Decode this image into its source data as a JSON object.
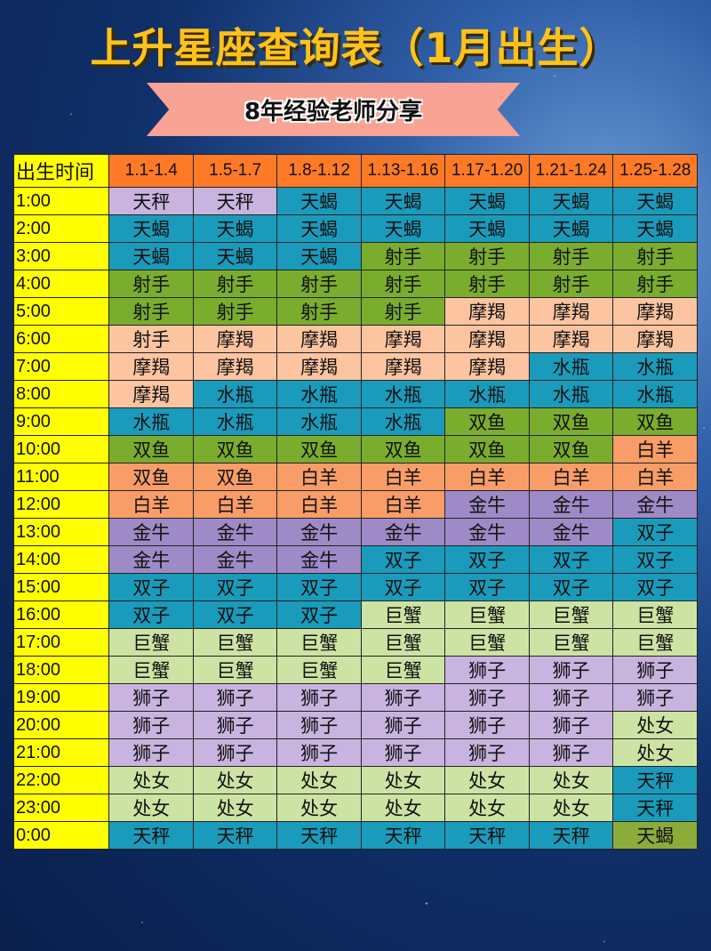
{
  "title": "上升星座查询表（1月出生）",
  "subtitle": "8年经验老师分享",
  "colors": {
    "header": "#ff7a26",
    "time_column": "#ffff00",
    "T": "#1a9bbb",
    "G": "#7aad2e",
    "P": "#fcc4a0",
    "O": "#f99d68",
    "V": "#9d8ac6",
    "L": "#c9b3df",
    "Y": "#cde3a4",
    "A": "#8cac3a"
  },
  "table": {
    "corner": "出生时间",
    "columns": [
      "1.1-1.4",
      "1.5-1.7",
      "1.8-1.12",
      "1.13-1.16",
      "1.17-1.20",
      "1.21-1.24",
      "1.25-1.28"
    ],
    "rows": [
      {
        "time": "1:00",
        "signs": [
          "天秤",
          "天秤",
          "天蝎",
          "天蝎",
          "天蝎",
          "天蝎",
          "天蝎"
        ],
        "colors": [
          "L",
          "L",
          "T",
          "T",
          "T",
          "T",
          "T"
        ]
      },
      {
        "time": "2:00",
        "signs": [
          "天蝎",
          "天蝎",
          "天蝎",
          "天蝎",
          "天蝎",
          "天蝎",
          "天蝎"
        ],
        "colors": [
          "T",
          "T",
          "T",
          "T",
          "T",
          "T",
          "T"
        ]
      },
      {
        "time": "3:00",
        "signs": [
          "天蝎",
          "天蝎",
          "天蝎",
          "射手",
          "射手",
          "射手",
          "射手"
        ],
        "colors": [
          "T",
          "T",
          "T",
          "G",
          "G",
          "G",
          "G"
        ]
      },
      {
        "time": "4:00",
        "signs": [
          "射手",
          "射手",
          "射手",
          "射手",
          "射手",
          "射手",
          "射手"
        ],
        "colors": [
          "G",
          "G",
          "G",
          "G",
          "G",
          "G",
          "G"
        ]
      },
      {
        "time": "5:00",
        "signs": [
          "射手",
          "射手",
          "射手",
          "射手",
          "摩羯",
          "摩羯",
          "摩羯"
        ],
        "colors": [
          "G",
          "G",
          "G",
          "G",
          "P",
          "P",
          "P"
        ]
      },
      {
        "time": "6:00",
        "signs": [
          "射手",
          "摩羯",
          "摩羯",
          "摩羯",
          "摩羯",
          "摩羯",
          "摩羯"
        ],
        "colors": [
          "P",
          "P",
          "P",
          "P",
          "P",
          "P",
          "P"
        ]
      },
      {
        "time": "7:00",
        "signs": [
          "摩羯",
          "摩羯",
          "摩羯",
          "摩羯",
          "摩羯",
          "水瓶",
          "水瓶"
        ],
        "colors": [
          "P",
          "P",
          "P",
          "P",
          "P",
          "T",
          "T"
        ]
      },
      {
        "time": "8:00",
        "signs": [
          "摩羯",
          "水瓶",
          "水瓶",
          "水瓶",
          "水瓶",
          "水瓶",
          "水瓶"
        ],
        "colors": [
          "P",
          "T",
          "T",
          "T",
          "T",
          "T",
          "T"
        ]
      },
      {
        "time": "9:00",
        "signs": [
          "水瓶",
          "水瓶",
          "水瓶",
          "水瓶",
          "双鱼",
          "双鱼",
          "双鱼"
        ],
        "colors": [
          "T",
          "T",
          "T",
          "T",
          "G",
          "G",
          "G"
        ]
      },
      {
        "time": "10:00",
        "signs": [
          "双鱼",
          "双鱼",
          "双鱼",
          "双鱼",
          "双鱼",
          "双鱼",
          "白羊"
        ],
        "colors": [
          "G",
          "G",
          "G",
          "G",
          "G",
          "G",
          "O"
        ]
      },
      {
        "time": "11:00",
        "signs": [
          "双鱼",
          "双鱼",
          "白羊",
          "白羊",
          "白羊",
          "白羊",
          "白羊"
        ],
        "colors": [
          "O",
          "O",
          "O",
          "O",
          "O",
          "O",
          "O"
        ]
      },
      {
        "time": "12:00",
        "signs": [
          "白羊",
          "白羊",
          "白羊",
          "白羊",
          "金牛",
          "金牛",
          "金牛"
        ],
        "colors": [
          "O",
          "O",
          "O",
          "O",
          "V",
          "V",
          "V"
        ]
      },
      {
        "time": "13:00",
        "signs": [
          "金牛",
          "金牛",
          "金牛",
          "金牛",
          "金牛",
          "金牛",
          "双子"
        ],
        "colors": [
          "V",
          "V",
          "V",
          "V",
          "V",
          "V",
          "T"
        ]
      },
      {
        "time": "14:00",
        "signs": [
          "金牛",
          "金牛",
          "金牛",
          "双子",
          "双子",
          "双子",
          "双子"
        ],
        "colors": [
          "V",
          "V",
          "V",
          "T",
          "T",
          "T",
          "T"
        ]
      },
      {
        "time": "15:00",
        "signs": [
          "双子",
          "双子",
          "双子",
          "双子",
          "双子",
          "双子",
          "双子"
        ],
        "colors": [
          "T",
          "T",
          "T",
          "T",
          "T",
          "T",
          "T"
        ]
      },
      {
        "time": "16:00",
        "signs": [
          "双子",
          "双子",
          "双子",
          "巨蟹",
          "巨蟹",
          "巨蟹",
          "巨蟹"
        ],
        "colors": [
          "T",
          "T",
          "T",
          "Y",
          "Y",
          "Y",
          "Y"
        ]
      },
      {
        "time": "17:00",
        "signs": [
          "巨蟹",
          "巨蟹",
          "巨蟹",
          "巨蟹",
          "巨蟹",
          "巨蟹",
          "巨蟹"
        ],
        "colors": [
          "Y",
          "Y",
          "Y",
          "Y",
          "Y",
          "Y",
          "Y"
        ]
      },
      {
        "time": "18:00",
        "signs": [
          "巨蟹",
          "巨蟹",
          "巨蟹",
          "巨蟹",
          "狮子",
          "狮子",
          "狮子"
        ],
        "colors": [
          "Y",
          "Y",
          "Y",
          "Y",
          "L",
          "L",
          "L"
        ]
      },
      {
        "time": "19:00",
        "signs": [
          "狮子",
          "狮子",
          "狮子",
          "狮子",
          "狮子",
          "狮子",
          "狮子"
        ],
        "colors": [
          "L",
          "L",
          "L",
          "L",
          "L",
          "L",
          "L"
        ]
      },
      {
        "time": "20:00",
        "signs": [
          "狮子",
          "狮子",
          "狮子",
          "狮子",
          "狮子",
          "狮子",
          "处女"
        ],
        "colors": [
          "L",
          "L",
          "L",
          "L",
          "L",
          "L",
          "Y"
        ]
      },
      {
        "time": "21:00",
        "signs": [
          "狮子",
          "狮子",
          "狮子",
          "狮子",
          "狮子",
          "狮子",
          "处女"
        ],
        "colors": [
          "L",
          "L",
          "L",
          "L",
          "L",
          "L",
          "Y"
        ]
      },
      {
        "time": "22:00",
        "signs": [
          "处女",
          "处女",
          "处女",
          "处女",
          "处女",
          "处女",
          "天秤"
        ],
        "colors": [
          "Y",
          "Y",
          "Y",
          "Y",
          "Y",
          "Y",
          "T"
        ]
      },
      {
        "time": "23:00",
        "signs": [
          "处女",
          "处女",
          "处女",
          "处女",
          "处女",
          "处女",
          "天秤"
        ],
        "colors": [
          "Y",
          "Y",
          "Y",
          "Y",
          "Y",
          "Y",
          "T"
        ]
      },
      {
        "time": "0:00",
        "signs": [
          "天秤",
          "天秤",
          "天秤",
          "天秤",
          "天秤",
          "天秤",
          "天蝎"
        ],
        "colors": [
          "T",
          "T",
          "T",
          "T",
          "T",
          "T",
          "A"
        ]
      }
    ]
  }
}
